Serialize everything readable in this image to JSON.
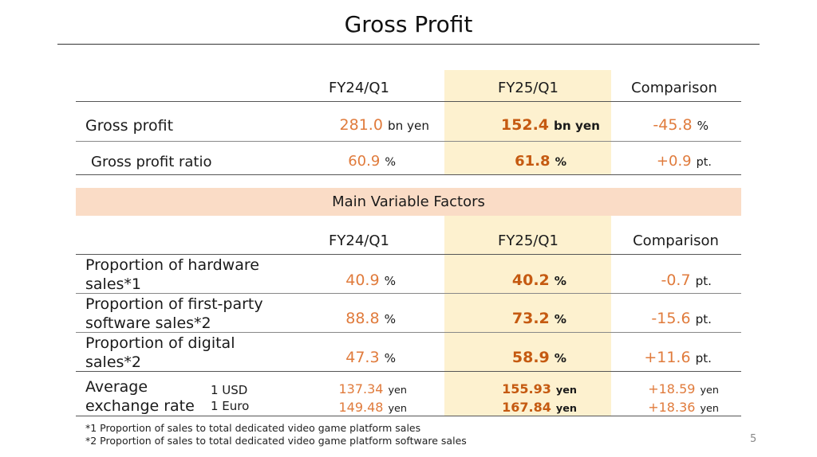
{
  "slide": {
    "title": "Gross Profit",
    "page_number": "5"
  },
  "columns": {
    "fy24": "FY24/Q1",
    "fy25": "FY25/Q1",
    "comparison": "Comparison"
  },
  "gross": {
    "rows": [
      {
        "label": "Gross profit",
        "fy24": "281.0",
        "fy24_unit": "bn yen",
        "fy25": "152.4",
        "fy25_unit": "bn yen",
        "cmp": "-45.8",
        "cmp_unit": "%"
      },
      {
        "label": "Gross profit ratio",
        "fy24": "60.9",
        "fy24_unit": "%",
        "fy25": "61.8",
        "fy25_unit": "%",
        "cmp": "+0.9",
        "cmp_unit": "pt."
      }
    ]
  },
  "factors": {
    "heading": "Main Variable Factors",
    "rows": [
      {
        "label_line1": "Proportion of hardware",
        "label_line2": "sales*1",
        "fy24": "40.9",
        "fy24_unit": "%",
        "fy25": "40.2",
        "fy25_unit": "%",
        "cmp": "-0.7",
        "cmp_unit": "pt."
      },
      {
        "label_line1": "Proportion of first-party",
        "label_line2": "software sales*2",
        "fy24": "88.8",
        "fy24_unit": "%",
        "fy25": "73.2",
        "fy25_unit": "%",
        "cmp": "-15.6",
        "cmp_unit": "pt."
      },
      {
        "label_line1": "Proportion of digital",
        "label_line2": "sales*2",
        "fy24": "47.3",
        "fy24_unit": "%",
        "fy25": "58.9",
        "fy25_unit": "%",
        "cmp": "+11.6",
        "cmp_unit": "pt."
      }
    ],
    "fx": {
      "label_line1": "Average",
      "label_line2": "exchange rate",
      "currency1": "1 USD",
      "currency2": "1 Euro",
      "unit": "yen",
      "usd": {
        "fy24": "137.34",
        "fy25": "155.93",
        "cmp": "+18.59"
      },
      "eur": {
        "fy24": "149.48",
        "fy25": "167.84",
        "cmp": "+18.36"
      }
    }
  },
  "footnotes": [
    "*1 Proportion of sales to total dedicated video game platform sales",
    "*2 Proportion of sales to total dedicated video game platform software sales"
  ]
}
